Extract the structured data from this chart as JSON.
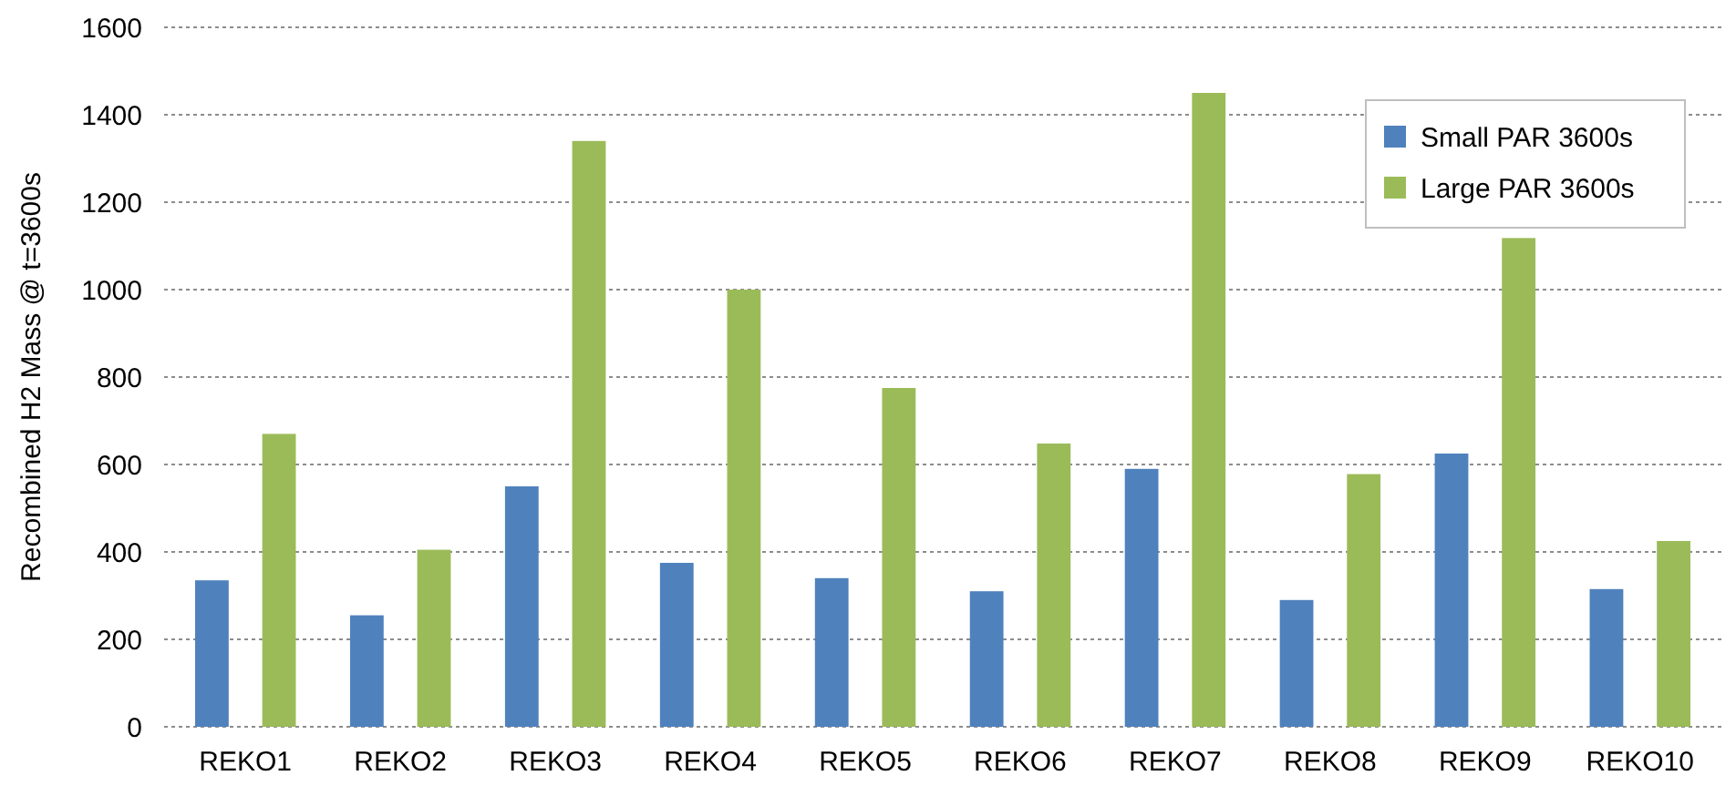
{
  "chart_data": {
    "type": "bar",
    "ylabel": "Recombined H2 Mass @ t=3600s",
    "categories": [
      "REKO1",
      "REKO2",
      "REKO3",
      "REKO4",
      "REKO5",
      "REKO6",
      "REKO7",
      "REKO8",
      "REKO9",
      "REKO10"
    ],
    "series": [
      {
        "name": "Small PAR 3600s",
        "color": "#4f81bd",
        "values": [
          335,
          255,
          550,
          375,
          340,
          310,
          590,
          290,
          625,
          315
        ]
      },
      {
        "name": "Large PAR 3600s",
        "color": "#9bbb59",
        "values": [
          670,
          405,
          1340,
          1000,
          775,
          648,
          1450,
          578,
          1118,
          425
        ]
      }
    ],
    "ylim": [
      0,
      1600
    ],
    "yticks": [
      0,
      200,
      400,
      600,
      800,
      1000,
      1200,
      1400,
      1600
    ],
    "grid": "y",
    "legend": "top right"
  }
}
